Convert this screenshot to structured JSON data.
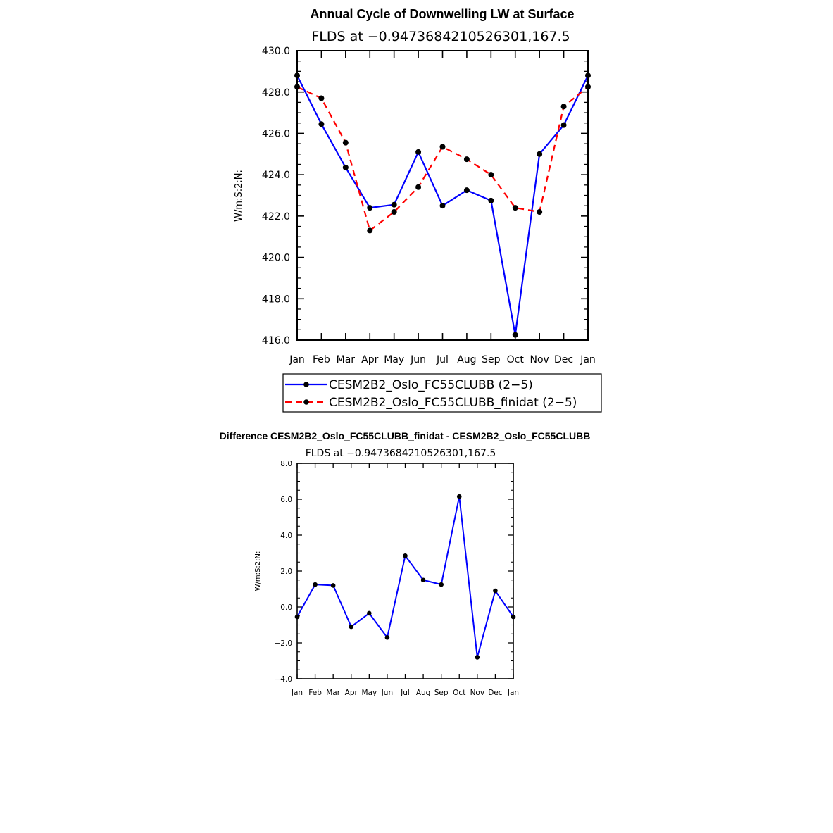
{
  "chart_data": [
    {
      "type": "line",
      "title": "Annual Cycle of Downwelling LW at Surface",
      "subtitle": "FLDS at −0.9473684210526301,167.5",
      "ylabel": "W/m:S:2:N:",
      "xlabel": "",
      "categories": [
        "Jan",
        "Feb",
        "Mar",
        "Apr",
        "May",
        "Jun",
        "Jul",
        "Aug",
        "Sep",
        "Oct",
        "Nov",
        "Dec",
        "Jan"
      ],
      "ylim": [
        416.0,
        430.0
      ],
      "yticks": [
        "416.0",
        "418.0",
        "420.0",
        "422.0",
        "424.0",
        "426.0",
        "428.0",
        "430.0"
      ],
      "grid": false,
      "legend_position": "below",
      "series": [
        {
          "name": "CESM2B2_Oslo_FC55CLUBB (2−5)",
          "color": "#0000ff",
          "dash": "solid",
          "values": [
            428.8,
            426.45,
            424.35,
            422.4,
            422.55,
            425.1,
            422.5,
            423.25,
            422.75,
            416.25,
            425.0,
            426.4,
            428.8
          ]
        },
        {
          "name": "CESM2B2_Oslo_FC55CLUBB_finidat (2−5)",
          "color": "#ff0000",
          "dash": "dashed",
          "values": [
            428.25,
            427.7,
            425.55,
            421.3,
            422.2,
            423.4,
            425.35,
            424.75,
            424.0,
            422.4,
            422.2,
            427.3,
            428.25
          ]
        }
      ]
    },
    {
      "type": "line",
      "title": "Difference CESM2B2_Oslo_FC55CLUBB_finidat - CESM2B2_Oslo_FC55CLUBB",
      "subtitle": "FLDS at −0.9473684210526301,167.5",
      "ylabel": "W/m:S:2:N:",
      "xlabel": "",
      "categories": [
        "Jan",
        "Feb",
        "Mar",
        "Apr",
        "May",
        "Jun",
        "Jul",
        "Aug",
        "Sep",
        "Oct",
        "Nov",
        "Dec",
        "Jan"
      ],
      "ylim": [
        -4.0,
        8.0
      ],
      "yticks": [
        "−4.0",
        "−2.0",
        "0.0",
        "2.0",
        "4.0",
        "6.0",
        "8.0"
      ],
      "grid": false,
      "series": [
        {
          "color": "#0000ff",
          "values": [
            -0.55,
            1.25,
            1.2,
            -1.1,
            -0.35,
            -1.7,
            2.85,
            1.5,
            1.25,
            6.15,
            -2.8,
            0.9,
            -0.55
          ]
        }
      ]
    }
  ]
}
